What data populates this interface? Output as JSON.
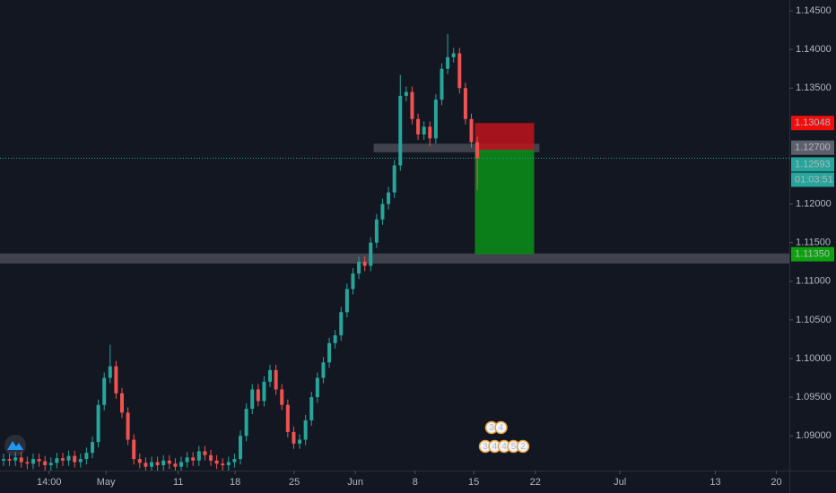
{
  "chart_data": {
    "type": "candlestick",
    "up_color": "#26a69a",
    "down_color": "#ef5350",
    "grid": false,
    "open": [
      1.0868,
      1.087,
      1.0868,
      1.0872,
      1.0866,
      1.0864,
      1.087,
      1.0867,
      1.0862,
      1.0865,
      1.0871,
      1.0868,
      1.0874,
      1.0866,
      1.087,
      1.0878,
      1.0892,
      1.094,
      1.0975,
      1.099,
      1.0955,
      1.093,
      1.0895,
      1.087,
      1.0865,
      1.086,
      1.0866,
      1.0862,
      1.0868,
      1.0864,
      1.086,
      1.0866,
      1.0872,
      1.0868,
      1.088,
      1.0875,
      1.0868,
      1.0864,
      1.0862,
      1.0866,
      1.087,
      1.09,
      1.0935,
      1.096,
      1.0945,
      1.097,
      1.0985,
      1.096,
      1.094,
      1.0905,
      1.089,
      1.0895,
      1.092,
      1.095,
      1.0975,
      1.0995,
      1.102,
      1.103,
      1.106,
      1.109,
      1.111,
      1.1125,
      1.112,
      1.115,
      1.118,
      1.12,
      1.1215,
      1.125,
      1.134,
      1.1345,
      1.131,
      1.129,
      1.13,
      1.1285,
      1.1335,
      1.1375,
      1.139,
      1.1395,
      1.135,
      1.131,
      1.128
    ],
    "high": [
      1.0877,
      1.0877,
      1.0879,
      1.0879,
      1.0873,
      1.0877,
      1.0877,
      1.0874,
      1.0872,
      1.0878,
      1.0878,
      1.0881,
      1.0881,
      1.0877,
      1.0885,
      1.0899,
      1.0947,
      1.0982,
      1.1018,
      1.0997,
      1.0962,
      1.0937,
      1.0902,
      1.0877,
      1.0872,
      1.0873,
      1.0873,
      1.0875,
      1.0875,
      1.0871,
      1.0873,
      1.0879,
      1.0879,
      1.0887,
      1.0887,
      1.0882,
      1.0875,
      1.0871,
      1.0873,
      1.0877,
      1.0907,
      1.0942,
      1.0967,
      1.0967,
      1.0977,
      1.0992,
      1.0992,
      1.0967,
      1.0947,
      1.0912,
      1.0902,
      1.0927,
      1.0957,
      1.0982,
      1.1002,
      1.1027,
      1.1037,
      1.1067,
      1.1097,
      1.1117,
      1.1132,
      1.1132,
      1.1157,
      1.1187,
      1.1207,
      1.1222,
      1.1257,
      1.1367,
      1.1352,
      1.1352,
      1.1317,
      1.1307,
      1.1307,
      1.1342,
      1.1382,
      1.142,
      1.1402,
      1.1402,
      1.1357,
      1.1317,
      1.1287
    ],
    "low": [
      1.0861,
      1.0861,
      1.0861,
      1.0859,
      1.0857,
      1.0857,
      1.086,
      1.0855,
      1.0855,
      1.0858,
      1.0861,
      1.0861,
      1.0859,
      1.0859,
      1.0863,
      1.0871,
      1.0885,
      1.0933,
      1.0968,
      1.0948,
      1.0923,
      1.0888,
      1.0863,
      1.0858,
      1.0853,
      1.0853,
      1.0855,
      1.0855,
      1.0857,
      1.0853,
      1.0853,
      1.0859,
      1.0861,
      1.0861,
      1.0868,
      1.0861,
      1.0857,
      1.0855,
      1.0855,
      1.0859,
      1.0863,
      1.0893,
      1.0928,
      1.0938,
      1.0938,
      1.0963,
      1.0953,
      1.0933,
      1.0898,
      1.0883,
      1.0883,
      1.0888,
      1.0913,
      1.0943,
      1.0968,
      1.0988,
      1.1013,
      1.1023,
      1.1053,
      1.1083,
      1.1103,
      1.1113,
      1.1113,
      1.1143,
      1.1173,
      1.1193,
      1.1208,
      1.1243,
      1.1333,
      1.1303,
      1.1283,
      1.1283,
      1.1275,
      1.1278,
      1.1328,
      1.1368,
      1.1383,
      1.1343,
      1.1303,
      1.1273,
      1.1218
    ],
    "close": [
      1.087,
      1.0868,
      1.0872,
      1.0866,
      1.0864,
      1.087,
      1.0867,
      1.0862,
      1.0865,
      1.0871,
      1.0868,
      1.0874,
      1.0866,
      1.087,
      1.0878,
      1.0892,
      1.094,
      1.0975,
      1.099,
      1.0955,
      1.093,
      1.0895,
      1.087,
      1.0865,
      1.086,
      1.0866,
      1.0862,
      1.0868,
      1.0864,
      1.086,
      1.0866,
      1.0872,
      1.0868,
      1.088,
      1.0875,
      1.0868,
      1.0864,
      1.0862,
      1.0866,
      1.087,
      1.09,
      1.0935,
      1.096,
      1.0945,
      1.097,
      1.0985,
      1.096,
      1.094,
      1.0905,
      1.089,
      1.0895,
      1.092,
      1.095,
      1.0975,
      1.0995,
      1.102,
      1.103,
      1.106,
      1.109,
      1.111,
      1.1125,
      1.112,
      1.115,
      1.118,
      1.12,
      1.1215,
      1.125,
      1.134,
      1.1345,
      1.131,
      1.129,
      1.13,
      1.1285,
      1.1335,
      1.1375,
      1.139,
      1.1395,
      1.135,
      1.131,
      1.128,
      1.12593
    ],
    "xlim": [
      -0.6,
      132.7
    ],
    "xticks": [
      {
        "value": 7.7,
        "label": "14:00"
      },
      {
        "value": 17.3,
        "label": "May"
      },
      {
        "value": 29.5,
        "label": "11"
      },
      {
        "value": 39.1,
        "label": "18"
      },
      {
        "value": 49.1,
        "label": "25"
      },
      {
        "value": 59.4,
        "label": "Jun"
      },
      {
        "value": 69.5,
        "label": "8"
      },
      {
        "value": 79.4,
        "label": "15"
      },
      {
        "value": 89.8,
        "label": "22"
      },
      {
        "value": 104.1,
        "label": "Jul"
      },
      {
        "value": 120.2,
        "label": "13"
      },
      {
        "value": 130.5,
        "label": "20"
      }
    ],
    "ylim": [
      1.0855,
      1.1464
    ],
    "yticks": [
      {
        "value": 1.145,
        "label": "1.14500"
      },
      {
        "value": 1.14,
        "label": "1.14000"
      },
      {
        "value": 1.135,
        "label": "1.13500"
      },
      {
        "value": 1.12,
        "label": "1.12000"
      },
      {
        "value": 1.115,
        "label": "1.11500"
      },
      {
        "value": 1.11,
        "label": "1.11000"
      },
      {
        "value": 1.105,
        "label": "1.10500"
      },
      {
        "value": 1.1,
        "label": "1.10000"
      },
      {
        "value": 1.095,
        "label": "1.09500"
      },
      {
        "value": 1.09,
        "label": "1.09000"
      }
    ],
    "position": {
      "stop": {
        "value": 1.13048,
        "label": "1.13048"
      },
      "entry": {
        "value": 1.127,
        "label": "1.12700"
      },
      "target": {
        "value": 1.1135,
        "label": "1.11350"
      }
    },
    "last_price": {
      "value": 1.12593,
      "label": "1.12593"
    },
    "countdown": "01:03:51",
    "zones": [
      {
        "low": 1.1267,
        "high": 1.1278
      },
      {
        "low": 1.1123,
        "high": 1.1136
      }
    ],
    "events": [
      [
        "3",
        "4"
      ],
      [
        "3",
        "4",
        "4",
        "5",
        "2"
      ]
    ]
  }
}
